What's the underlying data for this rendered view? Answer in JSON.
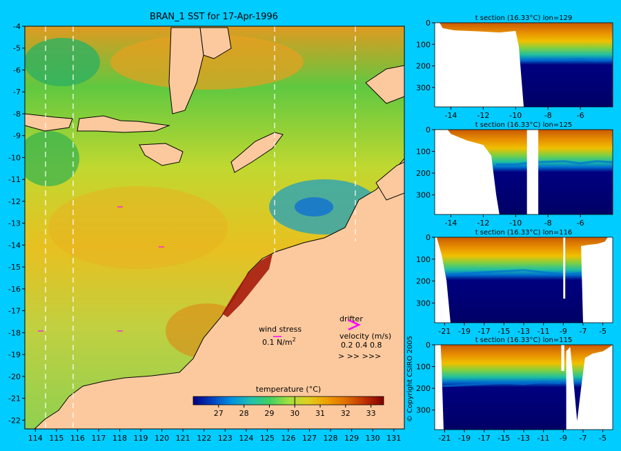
{
  "colors": {
    "background": "#00ccff",
    "land": "#fcc99e",
    "coast": "#000000",
    "section_mask": "#ffffff",
    "drifter": "#ff00ff",
    "wind_arrow": "#ff00ff",
    "track_lines": "#ffffff",
    "cold_deep": "#000066"
  },
  "copyright": "© Copyright CSIRO 2005",
  "chart_data": [
    {
      "type": "heatmap",
      "title": "BRAN_1 SST for 17-Apr-1996",
      "xlabel": "",
      "ylabel": "",
      "xlim": [
        113.5,
        131.5
      ],
      "ylim": [
        -22.4,
        -4
      ],
      "x_ticks": [
        "114",
        "115",
        "116",
        "117",
        "118",
        "119",
        "120",
        "121",
        "122",
        "123",
        "124",
        "125",
        "126",
        "127",
        "128",
        "129",
        "130",
        "131"
      ],
      "y_ticks": [
        "-4",
        "-5",
        "-6",
        "-7",
        "-8",
        "-9",
        "-10",
        "-11",
        "-12",
        "-13",
        "-14",
        "-15",
        "-16",
        "-17",
        "-18",
        "-19",
        "-20",
        "-21",
        "-22"
      ],
      "track_longitudes": [
        114.5,
        115.8,
        125.4,
        129.2
      ],
      "legend": {
        "wind_label": "wind stress",
        "wind_value": "0.1 N/m",
        "wind_sup": "2",
        "drifter_label": "drifter",
        "velocity_label": "velocity (m/s)",
        "velocity_values": "0.2 0.4 0.8",
        "velocity_arrows": ">  >>  >>>"
      },
      "colorbar": {
        "label": "temperature (°C)",
        "min": 26.0,
        "max": 33.5,
        "ticks": [
          "27",
          "28",
          "29",
          "30",
          "31",
          "32",
          "33"
        ],
        "marker_value": 30.0,
        "stops": [
          "#000080",
          "#0040c0",
          "#0090e0",
          "#20c0b0",
          "#40d060",
          "#a0e040",
          "#e0d020",
          "#f0a000",
          "#e07000",
          "#c03000",
          "#800000"
        ]
      }
    },
    {
      "type": "heatmap",
      "title": "t section (16.33°C) lon=129",
      "xlim": [
        -15,
        -4
      ],
      "ylim": [
        390,
        0
      ],
      "x_ticks": [
        "-14",
        "-12",
        "-10",
        "-8",
        "-6"
      ],
      "y_ticks": [
        "0",
        "100",
        "200",
        "300"
      ],
      "mask_poly": [
        [
          -15,
          0
        ],
        [
          -14.7,
          0
        ],
        [
          -14.5,
          25
        ],
        [
          -13.8,
          35
        ],
        [
          -12.3,
          40
        ],
        [
          -11.0,
          45
        ],
        [
          -10.0,
          38
        ],
        [
          -9.8,
          110
        ],
        [
          -9.5,
          390
        ],
        [
          -15,
          390
        ]
      ],
      "thermocline": [
        [
          -9.6,
          175
        ],
        [
          -9,
          172
        ],
        [
          -8,
          170
        ],
        [
          -7,
          172
        ],
        [
          -6,
          168
        ],
        [
          -5,
          174
        ],
        [
          -4,
          172
        ]
      ]
    },
    {
      "type": "heatmap",
      "title": "t section (16.33°C) lon=125",
      "xlim": [
        -15,
        -4
      ],
      "ylim": [
        390,
        0
      ],
      "x_ticks": [
        "-14",
        "-12",
        "-10",
        "-8",
        "-6"
      ],
      "y_ticks": [
        "0",
        "100",
        "200",
        "300"
      ],
      "mask_poly": [
        [
          -15,
          0
        ],
        [
          -14.2,
          0
        ],
        [
          -14,
          20
        ],
        [
          -13,
          50
        ],
        [
          -12,
          70
        ],
        [
          -11.5,
          120
        ],
        [
          -11.2,
          300
        ],
        [
          -11.0,
          390
        ],
        [
          -15,
          390
        ]
      ],
      "gap": [
        -9.3,
        -8.6
      ],
      "gap_bottom": 390,
      "thermocline": [
        [
          -11.2,
          160
        ],
        [
          -10,
          160
        ],
        [
          -9,
          150
        ],
        [
          -8,
          148
        ],
        [
          -7,
          145
        ],
        [
          -6,
          155
        ],
        [
          -5,
          145
        ],
        [
          -4,
          150
        ]
      ]
    },
    {
      "type": "heatmap",
      "title": "t section (16.33°C) lon=116",
      "xlim": [
        -22,
        -4
      ],
      "ylim": [
        390,
        0
      ],
      "x_ticks": [
        "-21",
        "-19",
        "-17",
        "-15",
        "-13",
        "-11",
        "-9",
        "-7",
        "-5"
      ],
      "y_ticks": [
        "0",
        "100",
        "200",
        "300"
      ],
      "mask_poly": [
        [
          -22,
          0
        ],
        [
          -21.8,
          0
        ],
        [
          -21.3,
          80
        ],
        [
          -20.8,
          200
        ],
        [
          -20.4,
          390
        ],
        [
          -22,
          390
        ]
      ],
      "mask_right": [
        [
          -7,
          390
        ],
        [
          -7.2,
          40
        ],
        [
          -6.5,
          35
        ],
        [
          -5.5,
          30
        ],
        [
          -4.8,
          20
        ],
        [
          -4.5,
          0
        ],
        [
          -4,
          0
        ],
        [
          -4,
          390
        ]
      ],
      "gap": [
        -9.0,
        -8.8
      ],
      "gap_bottom": 280,
      "thermocline": [
        [
          -20.5,
          170
        ],
        [
          -19,
          165
        ],
        [
          -17,
          160
        ],
        [
          -15,
          155
        ],
        [
          -13,
          150
        ],
        [
          -11,
          160
        ],
        [
          -9,
          170
        ],
        [
          -7.2,
          165
        ]
      ]
    },
    {
      "type": "heatmap",
      "title": "t section (16.33°C) lon=115",
      "xlim": [
        -22,
        -4
      ],
      "ylim": [
        390,
        0
      ],
      "x_ticks": [
        "-21",
        "-19",
        "-17",
        "-15",
        "-13",
        "-11",
        "-9",
        "-7",
        "-5"
      ],
      "y_ticks": [
        "0",
        "100",
        "200",
        "300"
      ],
      "mask_poly": [
        [
          -22,
          0
        ],
        [
          -21.4,
          0
        ],
        [
          -21.3,
          100
        ],
        [
          -21.1,
          390
        ],
        [
          -22,
          390
        ]
      ],
      "mask_right": [
        [
          -8.7,
          390
        ],
        [
          -8.7,
          30
        ],
        [
          -8.3,
          10
        ],
        [
          -8.0,
          150
        ],
        [
          -7.6,
          350
        ],
        [
          -7.2,
          200
        ],
        [
          -6.8,
          60
        ],
        [
          -6,
          40
        ],
        [
          -5,
          30
        ],
        [
          -4.3,
          10
        ],
        [
          -4,
          0
        ],
        [
          -4,
          390
        ]
      ],
      "gap": [
        -9.2,
        -8.9
      ],
      "gap_bottom": 120,
      "thermocline": [
        [
          -21.2,
          190
        ],
        [
          -19,
          185
        ],
        [
          -17,
          180
        ],
        [
          -15,
          175
        ],
        [
          -13,
          180
        ],
        [
          -11,
          170
        ],
        [
          -9.3,
          175
        ]
      ]
    }
  ]
}
